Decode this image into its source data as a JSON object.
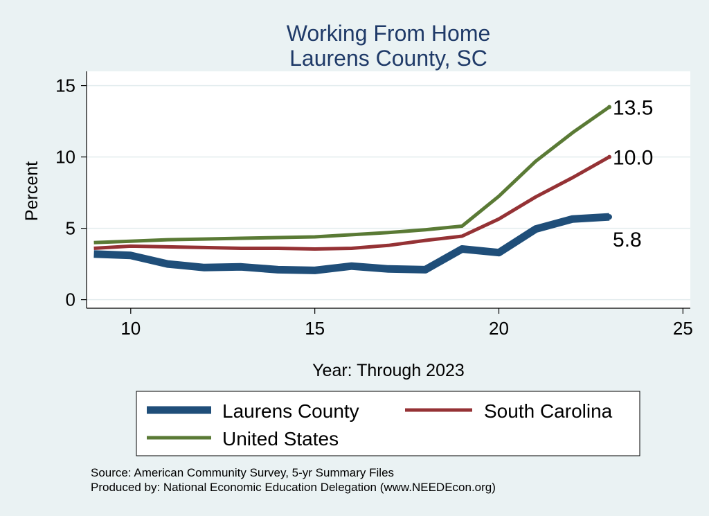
{
  "chart_data": {
    "type": "line",
    "title": [
      "Working From Home",
      "Laurens County, SC"
    ],
    "xlabel": "Year: Through 2023",
    "ylabel": "Percent",
    "xlim": [
      8.8,
      25.2
    ],
    "ylim": [
      -0.6,
      16
    ],
    "xticks": [
      10,
      15,
      20,
      25
    ],
    "yticks": [
      0,
      5,
      10,
      15
    ],
    "grid": true,
    "legend_position": "bottom",
    "x": [
      9,
      10,
      11,
      12,
      13,
      14,
      15,
      16,
      17,
      18,
      19,
      20,
      21,
      22,
      23
    ],
    "series": [
      {
        "name": "Laurens County",
        "color": "#1f4e79",
        "width": 11,
        "values": [
          3.2,
          3.1,
          2.5,
          2.25,
          2.3,
          2.1,
          2.05,
          2.35,
          2.15,
          2.1,
          3.55,
          3.3,
          4.95,
          5.65,
          5.8
        ],
        "end_label": "5.8"
      },
      {
        "name": "South Carolina",
        "color": "#953235",
        "width": 5,
        "values": [
          3.6,
          3.75,
          3.7,
          3.65,
          3.6,
          3.6,
          3.55,
          3.6,
          3.8,
          4.15,
          4.45,
          5.65,
          7.2,
          8.55,
          10.0
        ],
        "end_label": "10.0"
      },
      {
        "name": "United States",
        "color": "#5a7a35",
        "width": 5,
        "values": [
          4.0,
          4.1,
          4.2,
          4.25,
          4.3,
          4.35,
          4.4,
          4.55,
          4.7,
          4.9,
          5.15,
          7.25,
          9.7,
          11.7,
          13.5
        ],
        "end_label": "13.5"
      }
    ],
    "source_lines": [
      "Source: American Community Survey, 5-yr Summary Files",
      "Produced by: National Economic Education Delegation (www.NEEDEcon.org)"
    ]
  }
}
